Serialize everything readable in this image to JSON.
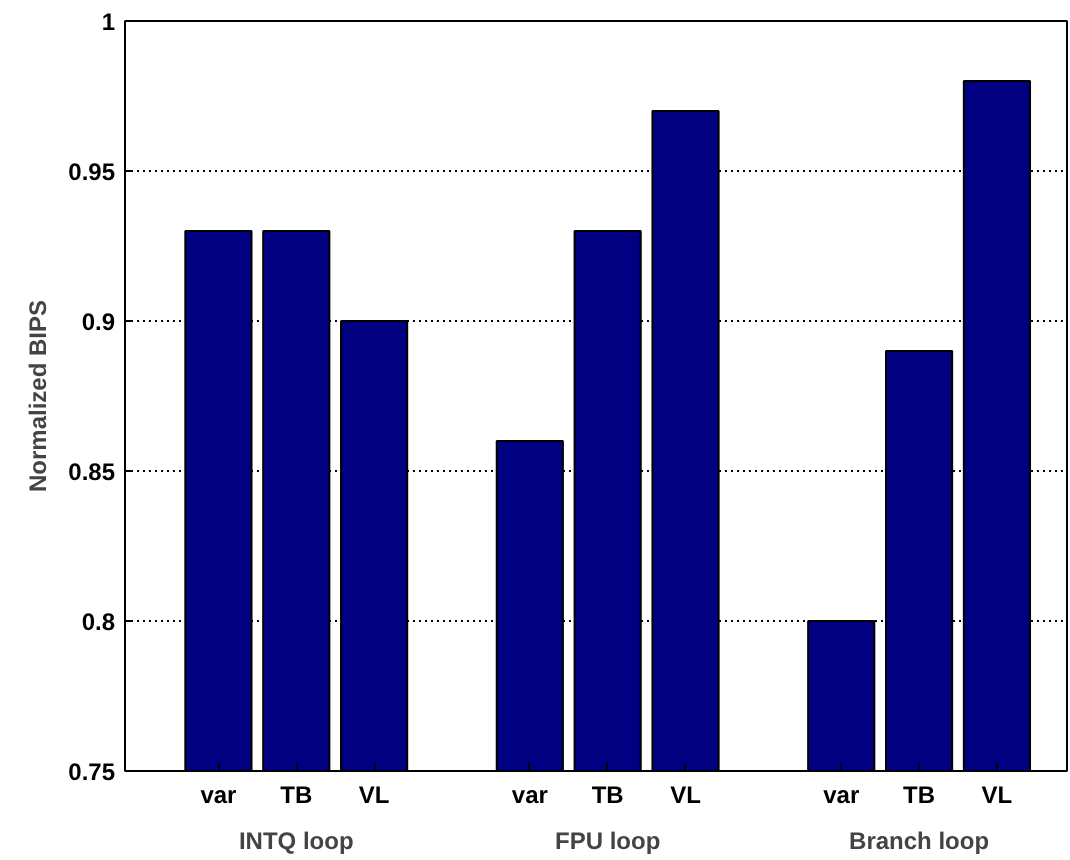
{
  "chart_data": {
    "type": "bar",
    "ylabel": "Normalized BIPS",
    "categories": [
      "var",
      "TB",
      "VL",
      null,
      "var",
      "TB",
      "VL",
      null,
      "var",
      "TB",
      "VL"
    ],
    "values": [
      0.93,
      0.93,
      0.9,
      null,
      0.86,
      0.93,
      0.97,
      null,
      0.8,
      0.89,
      0.98
    ],
    "color": "#000080",
    "annotations": [
      "INTQ loop",
      "FPU loop",
      "Branch loop"
    ],
    "ylim": [
      0.75,
      1
    ],
    "yticks": [
      0.75,
      0.8,
      0.85,
      0.9,
      0.95,
      1
    ],
    "grid": "y"
  }
}
